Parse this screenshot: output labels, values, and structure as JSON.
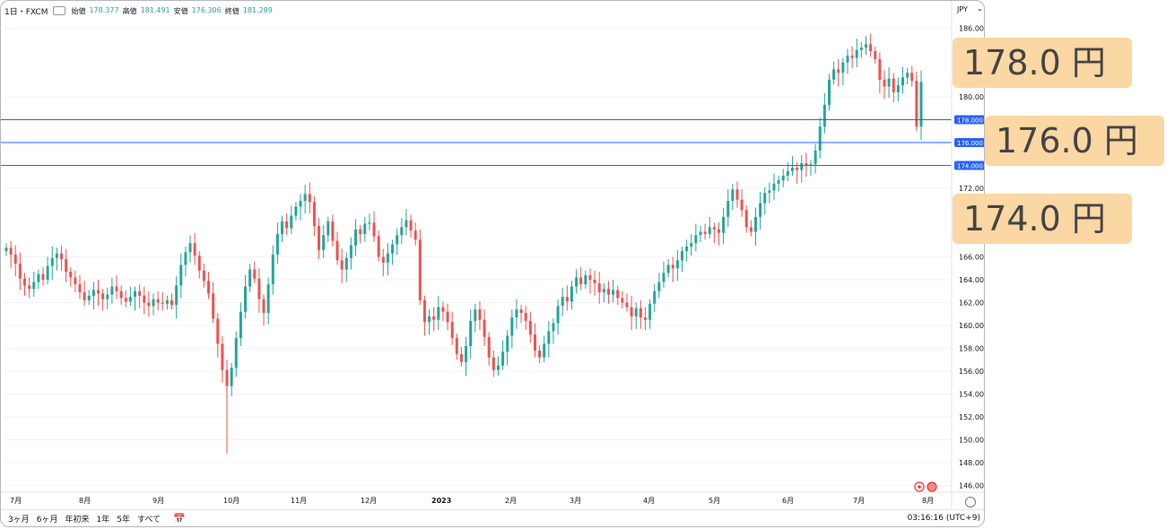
{
  "header": {
    "symbol": "1日・FXCM",
    "ohlc": [
      {
        "label": "始値",
        "value": "178.377"
      },
      {
        "label": "高値",
        "value": "181.491"
      },
      {
        "label": "安値",
        "value": "176.306"
      },
      {
        "label": "終値",
        "value": "181.289"
      }
    ],
    "currency": "JPY"
  },
  "price_axis": {
    "ticks": [
      "186.000",
      "180.000",
      "172.000",
      "166.000",
      "164.000",
      "162.000",
      "160.000",
      "158.000",
      "156.000",
      "154.000",
      "152.000",
      "150.000",
      "148.000",
      "146.000"
    ],
    "labels": {
      "l178": "178.000",
      "l176": "176.000",
      "l174": "174.000"
    }
  },
  "time_axis": [
    "7月",
    "8月",
    "9月",
    "10月",
    "11月",
    "12月",
    "2023",
    "2月",
    "3月",
    "4月",
    "5月",
    "6月",
    "7月",
    "8月"
  ],
  "toolbar": {
    "ranges": [
      "3ヶ月",
      "6ヶ月",
      "年初来",
      "1年",
      "5年",
      "すべて"
    ],
    "time": "03:16:16 (UTC+9)"
  },
  "callouts": {
    "c178": "178.0 円",
    "c176": "176.0 円",
    "c174": "174.0 円"
  },
  "colors": {
    "up": "#26a69a",
    "down": "#ef5350",
    "hline": "#2962ff",
    "callout": "#fbd7a3"
  },
  "chart_data": {
    "type": "candlestick",
    "horizontal_lines": [
      178.0,
      176.0,
      174.0
    ],
    "closes": [
      166.8,
      166.2,
      165.4,
      164.1,
      163.5,
      163.2,
      163.8,
      164.5,
      164.0,
      165.2,
      165.9,
      166.3,
      165.8,
      164.7,
      164.2,
      163.6,
      162.9,
      162.2,
      162.6,
      163.1,
      162.8,
      162.3,
      162.7,
      163.4,
      163.0,
      162.4,
      162.1,
      162.5,
      163.0,
      162.6,
      162.0,
      161.7,
      162.3,
      162.0,
      161.9,
      162.2,
      161.8,
      163.5,
      165.3,
      166.4,
      167.2,
      166.1,
      164.8,
      163.9,
      162.8,
      160.6,
      158.4,
      156.1,
      154.7,
      156.3,
      158.9,
      161.2,
      163.4,
      164.9,
      164.1,
      162.3,
      161.1,
      163.6,
      166.2,
      168.0,
      169.1,
      168.5,
      169.6,
      170.4,
      170.9,
      171.5,
      170.8,
      168.7,
      166.6,
      167.9,
      169.1,
      167.4,
      165.7,
      164.9,
      165.9,
      167.0,
      168.4,
      168.0,
      168.9,
      169.0,
      167.8,
      166.0,
      165.5,
      166.3,
      167.1,
      167.9,
      168.6,
      169.2,
      168.3,
      167.5,
      162.2,
      160.3,
      160.8,
      160.5,
      161.6,
      161.2,
      160.3,
      158.9,
      157.5,
      156.8,
      158.2,
      160.4,
      161.4,
      160.5,
      159.0,
      157.2,
      156.1,
      156.5,
      157.7,
      159.1,
      160.7,
      161.4,
      161.1,
      160.4,
      159.2,
      157.8,
      157.2,
      158.4,
      159.5,
      160.2,
      161.7,
      162.5,
      162.1,
      163.4,
      164.2,
      163.6,
      164.4,
      164.0,
      163.7,
      162.9,
      163.2,
      162.7,
      163.1,
      162.4,
      162.0,
      161.6,
      160.8,
      161.5,
      160.7,
      160.5,
      161.9,
      163.0,
      163.8,
      164.6,
      165.3,
      165.0,
      165.7,
      166.5,
      166.9,
      167.2,
      167.9,
      168.2,
      168.0,
      168.6,
      168.4,
      168.1,
      169.5,
      170.9,
      171.9,
      171.0,
      170.1,
      168.6,
      168.2,
      169.5,
      170.7,
      171.6,
      171.8,
      172.4,
      172.7,
      173.1,
      173.5,
      173.8,
      173.6,
      174.2,
      174.0,
      174.1,
      175.3,
      177.4,
      179.3,
      181.5,
      182.4,
      182.1,
      183.0,
      183.6,
      183.4,
      184.1,
      184.3,
      184.6,
      184.0,
      183.3,
      181.5,
      180.9,
      181.6,
      180.4,
      181.0,
      181.7,
      182.1,
      181.4,
      177.4,
      181.3
    ],
    "y_range": [
      145.0,
      187.5
    ]
  }
}
